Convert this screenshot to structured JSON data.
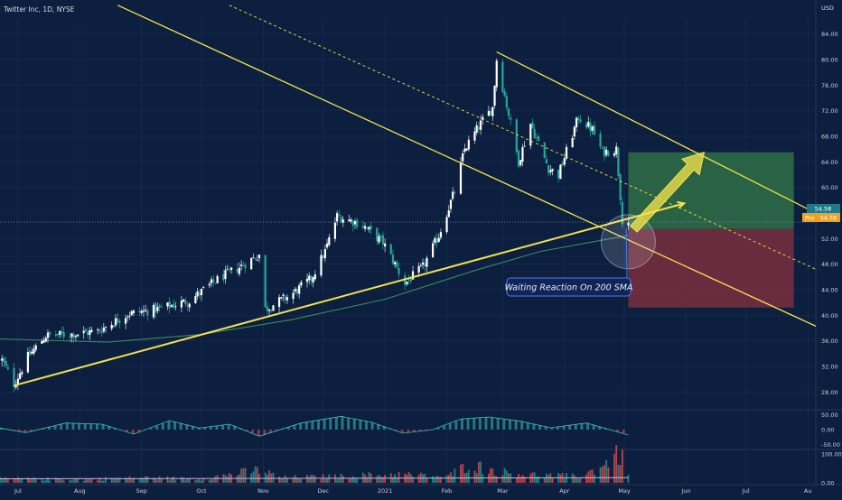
{
  "header": {
    "title": "Twitter Inc, 1D, NYSE"
  },
  "currency": "USD",
  "price_axis": {
    "ticks": [
      "84.00",
      "80.00",
      "76.00",
      "72.00",
      "68.00",
      "64.00",
      "60.00",
      "56.00",
      "52.00",
      "48.00",
      "44.00",
      "40.00",
      "36.00",
      "32.00",
      "28.00"
    ],
    "last_price_label": "54.58",
    "pre_label": "Pre",
    "pre_price_label": "54.58"
  },
  "oscillator_axis": {
    "ticks": [
      "50.00",
      "0.00",
      "-50.00"
    ]
  },
  "volume_axis": {
    "ticks": [
      "100.00",
      "0.00"
    ]
  },
  "time_axis": {
    "ticks": [
      "Jul",
      "Aug",
      "Sep",
      "Oct",
      "Nov",
      "Dec",
      "2021",
      "Feb",
      "Mar",
      "Apr",
      "May",
      "Jun",
      "Jul",
      "Au"
    ]
  },
  "annotation": {
    "text": "Waiting Reaction On 200 SMA"
  },
  "colors": {
    "background": "#0c1f3f",
    "up": "#26a69a",
    "down": "#ef5350",
    "candle_up_body": "#ffffff",
    "trendline": "#f2e34b",
    "sma": "#3a8a63",
    "target_zone": "#2f6f45",
    "stop_zone": "#7a2e3e",
    "annotation_border": "#4f7df0",
    "price_label": "#f0a11c"
  },
  "chart_data": {
    "type": "candlestick",
    "title": "Twitter Inc, 1D, NYSE",
    "y_unit": "USD",
    "ylim": [
      25.5,
      86.5
    ],
    "x_range": [
      "2020-06-22",
      "2021-08-05"
    ],
    "price_path": [
      [
        "2020-06-23",
        33.0
      ],
      [
        "2020-06-29",
        29.2
      ],
      [
        "2020-07-06",
        33.5
      ],
      [
        "2020-07-15",
        36.8
      ],
      [
        "2020-07-27",
        37.0
      ],
      [
        "2020-08-10",
        37.5
      ],
      [
        "2020-08-25",
        40.2
      ],
      [
        "2020-09-10",
        41.0
      ],
      [
        "2020-09-25",
        42.3
      ],
      [
        "2020-10-10",
        45.8
      ],
      [
        "2020-10-20",
        47.5
      ],
      [
        "2020-10-30",
        49.5
      ],
      [
        "2020-11-02",
        41.0
      ],
      [
        "2020-11-15",
        43.2
      ],
      [
        "2020-11-25",
        45.7
      ],
      [
        "2020-12-02",
        50.0
      ],
      [
        "2020-12-08",
        55.5
      ],
      [
        "2020-12-20",
        54.3
      ],
      [
        "2020-12-31",
        51.4
      ],
      [
        "2021-01-05",
        48.6
      ],
      [
        "2021-01-11",
        45.0
      ],
      [
        "2021-01-20",
        47.5
      ],
      [
        "2021-01-28",
        52.5
      ],
      [
        "2021-02-05",
        59.5
      ],
      [
        "2021-02-10",
        66.0
      ],
      [
        "2021-02-18",
        70.0
      ],
      [
        "2021-02-24",
        72.5
      ],
      [
        "2021-02-26",
        80.0
      ],
      [
        "2021-03-05",
        70.0
      ],
      [
        "2021-03-09",
        64.0
      ],
      [
        "2021-03-15",
        70.0
      ],
      [
        "2021-03-24",
        63.0
      ],
      [
        "2021-03-29",
        62.0
      ],
      [
        "2021-04-08",
        71.0
      ],
      [
        "2021-04-15",
        69.0
      ],
      [
        "2021-04-20",
        65.5
      ],
      [
        "2021-04-27",
        66.0
      ],
      [
        "2021-04-30",
        55.0
      ],
      [
        "2021-05-03",
        54.58
      ]
    ],
    "sma_200_path": [
      [
        "2020-06-22",
        36.3
      ],
      [
        "2020-08-15",
        35.8
      ],
      [
        "2020-10-01",
        37.0
      ],
      [
        "2020-11-15",
        39.3
      ],
      [
        "2021-01-01",
        42.5
      ],
      [
        "2021-02-15",
        47.0
      ],
      [
        "2021-03-20",
        50.0
      ],
      [
        "2021-05-03",
        52.5
      ]
    ],
    "trendlines": [
      {
        "type": "support",
        "points": [
          [
            "2020-06-29",
            29.0
          ],
          [
            "2021-05-31",
            57.5
          ]
        ]
      },
      {
        "type": "channel-upper",
        "points": [
          [
            "2021-02-26",
            81.2
          ],
          [
            "2021-08-05",
            56.0
          ]
        ]
      },
      {
        "type": "channel-mid",
        "points": [
          [
            "2020-10-15",
            88.5
          ],
          [
            "2021-08-05",
            47.2
          ]
        ]
      },
      {
        "type": "channel-lower",
        "points": [
          [
            "2020-08-20",
            88.5
          ],
          [
            "2021-08-05",
            38.3
          ]
        ]
      }
    ],
    "position": {
      "entry": 53.5,
      "target": 65.5,
      "stop": 41.2,
      "start": "2021-05-03",
      "end": "2021-07-25"
    },
    "oscillator_range": [
      -60,
      60
    ],
    "oscillator_path": [
      [
        "2020-06-22",
        5
      ],
      [
        "2020-07-05",
        -10
      ],
      [
        "2020-07-25",
        22
      ],
      [
        "2020-08-12",
        18
      ],
      [
        "2020-08-28",
        -15
      ],
      [
        "2020-09-15",
        30
      ],
      [
        "2020-09-30",
        5
      ],
      [
        "2020-10-15",
        18
      ],
      [
        "2020-10-30",
        -22
      ],
      [
        "2020-11-20",
        22
      ],
      [
        "2020-12-10",
        44
      ],
      [
        "2020-12-25",
        25
      ],
      [
        "2021-01-10",
        -12
      ],
      [
        "2021-01-25",
        0
      ],
      [
        "2021-02-08",
        35
      ],
      [
        "2021-02-22",
        42
      ],
      [
        "2021-03-10",
        28
      ],
      [
        "2021-03-25",
        6
      ],
      [
        "2021-04-12",
        22
      ],
      [
        "2021-05-03",
        -18
      ]
    ],
    "volume_range": [
      0,
      110
    ],
    "volume_path": [
      [
        "2020-06-22",
        15
      ],
      [
        "2020-08-01",
        12
      ],
      [
        "2020-09-01",
        18
      ],
      [
        "2020-10-01",
        14
      ],
      [
        "2020-10-30",
        45
      ],
      [
        "2020-11-10",
        18
      ],
      [
        "2020-12-05",
        22
      ],
      [
        "2021-01-08",
        30
      ],
      [
        "2021-02-01",
        20
      ],
      [
        "2021-02-12",
        65
      ],
      [
        "2021-02-26",
        40
      ],
      [
        "2021-03-15",
        28
      ],
      [
        "2021-04-10",
        22
      ],
      [
        "2021-04-29",
        100
      ],
      [
        "2021-05-03",
        30
      ]
    ]
  }
}
